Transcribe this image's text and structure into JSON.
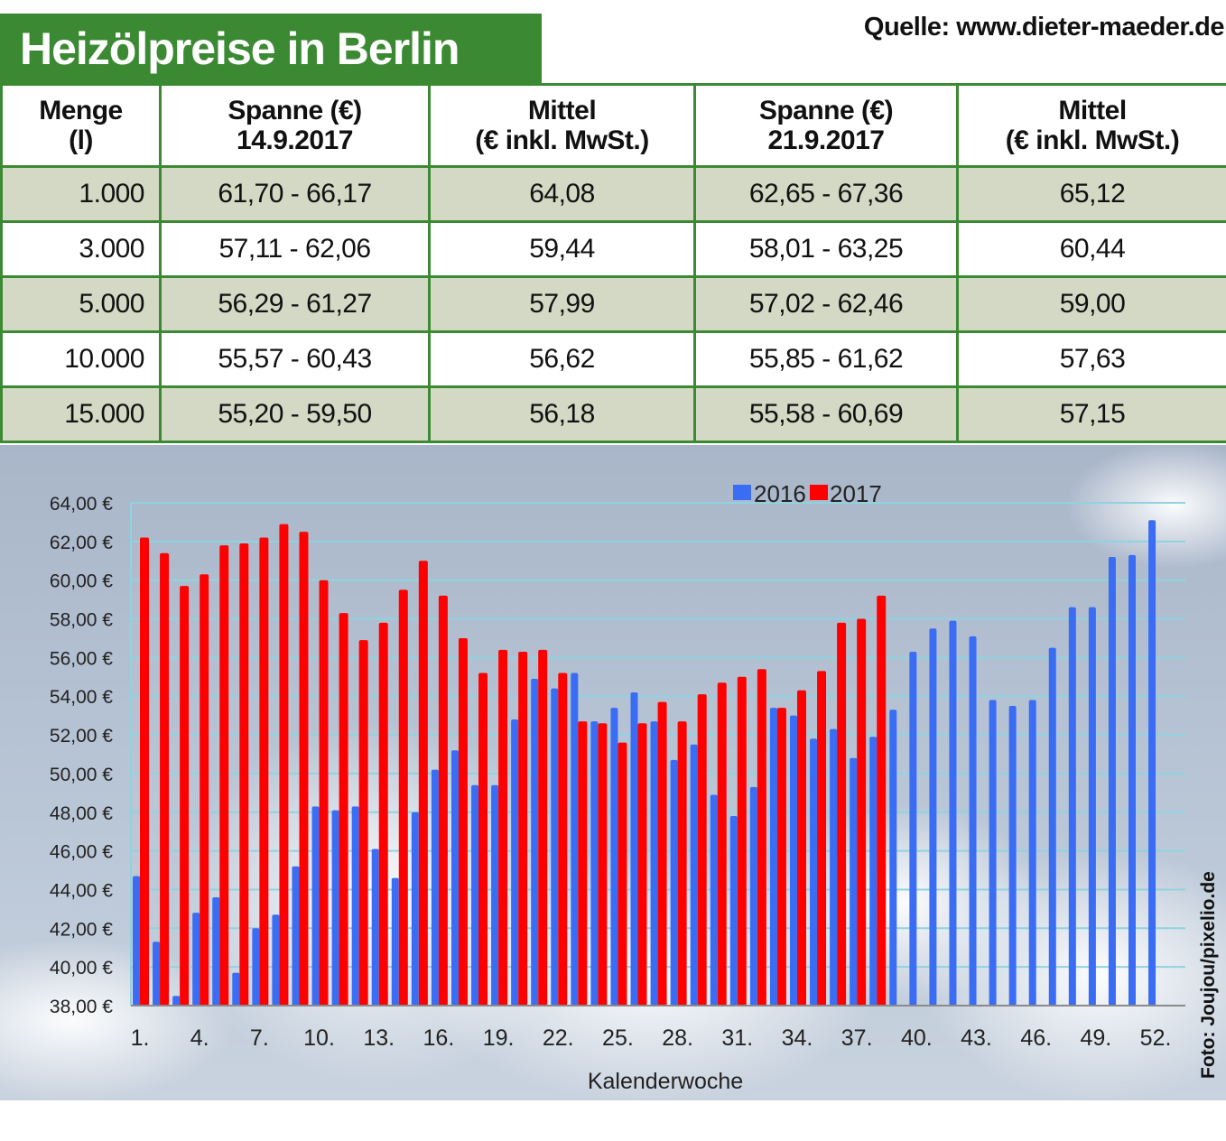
{
  "header": {
    "title": "Heizölpreise in Berlin",
    "source": "Quelle: www.dieter-maeder.de"
  },
  "table": {
    "columns": [
      {
        "line1": "Menge",
        "line2": "(l)"
      },
      {
        "line1": "Spanne (€)",
        "line2": "14.9.2017"
      },
      {
        "line1": "Mittel",
        "line2": "(€ inkl. MwSt.)"
      },
      {
        "line1": "Spanne (€)",
        "line2": "21.9.2017"
      },
      {
        "line1": "Mittel",
        "line2": "(€ inkl. MwSt.)"
      }
    ],
    "rows": [
      [
        "1.000",
        "61,70 - 66,17",
        "64,08",
        "62,65 - 67,36",
        "65,12"
      ],
      [
        "3.000",
        "57,11 - 62,06",
        "59,44",
        "58,01 - 63,25",
        "60,44"
      ],
      [
        "5.000",
        "56,29 - 61,27",
        "57,99",
        "57,02 - 62,46",
        "59,00"
      ],
      [
        "10.000",
        "55,57 - 60,43",
        "56,62",
        "55,85 - 61,62",
        "57,63"
      ],
      [
        "15.000",
        "55,20 - 59,50",
        "56,18",
        "55,58 - 60,69",
        "57,15"
      ]
    ]
  },
  "credit": "Foto: Joujou/pixelio.de",
  "colors": {
    "green": "#3b8a33",
    "series_2016": "#3a6cf4",
    "series_2017": "#ff0000",
    "row_shade": "#d3d9c4"
  },
  "chart_data": {
    "type": "bar",
    "xlabel": "Kalenderwoche",
    "ylabel": "",
    "ylim": [
      38,
      64
    ],
    "y_ticks": [
      "38,00 €",
      "40,00 €",
      "42,00 €",
      "44,00 €",
      "46,00 €",
      "48,00 €",
      "50,00 €",
      "52,00 €",
      "54,00 €",
      "56,00 €",
      "58,00 €",
      "60,00 €",
      "62,00 €",
      "64,00 €"
    ],
    "x_tick_labels": [
      "1.",
      "4.",
      "7.",
      "10.",
      "13.",
      "16.",
      "19.",
      "22.",
      "25.",
      "28.",
      "31.",
      "34.",
      "37.",
      "40.",
      "43.",
      "46.",
      "49.",
      "52."
    ],
    "x_tick_weeks": [
      1,
      4,
      7,
      10,
      13,
      16,
      19,
      22,
      25,
      28,
      31,
      34,
      37,
      40,
      43,
      46,
      49,
      52
    ],
    "grid": true,
    "legend": "top-center",
    "weeks": [
      1,
      2,
      3,
      4,
      5,
      6,
      7,
      8,
      9,
      10,
      11,
      12,
      13,
      14,
      15,
      16,
      17,
      18,
      19,
      20,
      21,
      22,
      23,
      24,
      25,
      26,
      27,
      28,
      29,
      30,
      31,
      32,
      33,
      34,
      35,
      36,
      37,
      38,
      39,
      40,
      41,
      42,
      43,
      44,
      45,
      46,
      47,
      48,
      49,
      50,
      51,
      52
    ],
    "series": [
      {
        "name": "2016",
        "values": [
          44.7,
          41.3,
          38.5,
          42.8,
          43.6,
          39.7,
          42.0,
          42.7,
          45.2,
          48.3,
          48.1,
          48.3,
          46.1,
          44.6,
          48.0,
          50.2,
          51.2,
          49.4,
          49.4,
          52.8,
          54.9,
          54.4,
          55.2,
          52.7,
          53.4,
          54.2,
          52.7,
          50.7,
          51.5,
          48.9,
          47.8,
          49.3,
          53.4,
          53.0,
          51.8,
          52.3,
          50.8,
          51.9,
          53.3,
          56.3,
          57.5,
          57.9,
          57.1,
          53.8,
          53.5,
          53.8,
          56.5,
          58.6,
          58.6,
          61.2,
          61.3,
          63.1
        ]
      },
      {
        "name": "2017",
        "values": [
          62.2,
          61.4,
          59.7,
          60.3,
          61.8,
          61.9,
          62.2,
          62.9,
          62.5,
          60.0,
          58.3,
          56.9,
          57.8,
          59.5,
          61.0,
          59.2,
          57.0,
          55.2,
          56.4,
          56.3,
          56.4,
          55.2,
          52.7,
          52.6,
          51.6,
          52.6,
          53.7,
          52.7,
          54.1,
          54.7,
          55.0,
          55.4,
          53.4,
          54.3,
          55.3,
          57.8,
          58.0,
          59.2
        ]
      }
    ]
  }
}
